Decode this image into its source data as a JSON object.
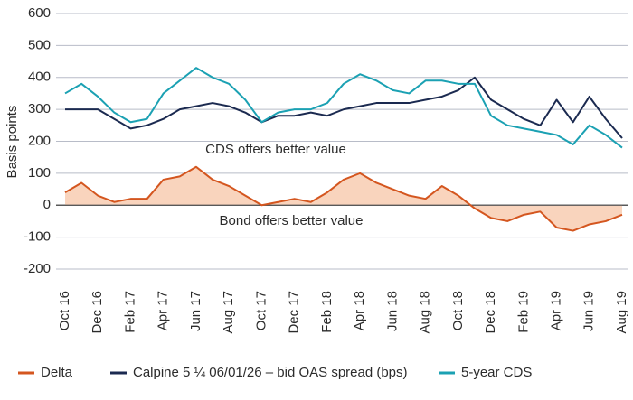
{
  "chart_data": {
    "type": "line",
    "y_label": "Basis points",
    "annotations": [
      "CDS offers better value",
      "Bond offers better value"
    ],
    "categories": [
      "Oct 16",
      null,
      "Dec 16",
      null,
      "Feb 17",
      null,
      "Apr 17",
      null,
      "Jun 17",
      null,
      "Aug 17",
      null,
      "Oct 17",
      null,
      "Dec 17",
      null,
      "Feb 18",
      null,
      "Apr 18",
      null,
      "Jun 18",
      null,
      "Aug 18",
      null,
      "Oct 18",
      null,
      "Dec 18",
      null,
      "Feb 19",
      null,
      "Apr 19",
      null,
      "Jun 19",
      null,
      "Aug 19"
    ],
    "series": [
      {
        "name": "Delta",
        "color": "#d4561f",
        "fill": "#f9d4bd",
        "values": [
          40,
          70,
          30,
          10,
          20,
          20,
          80,
          90,
          120,
          80,
          60,
          30,
          0,
          10,
          20,
          10,
          40,
          80,
          100,
          70,
          50,
          30,
          20,
          60,
          30,
          -10,
          -40,
          -50,
          -30,
          -20,
          -70,
          -80,
          -60,
          -50,
          -30
        ]
      },
      {
        "name": "Calpine 5 ¼ 06/01/26 – bid OAS spread (bps)",
        "color": "#1b2a50",
        "values": [
          300,
          300,
          300,
          270,
          240,
          250,
          270,
          300,
          310,
          320,
          310,
          290,
          260,
          280,
          280,
          290,
          280,
          300,
          310,
          320,
          320,
          320,
          330,
          340,
          360,
          400,
          330,
          300,
          270,
          250,
          330,
          260,
          340,
          270,
          210
        ]
      },
      {
        "name": "5-year CDS",
        "color": "#1ba1b3",
        "values": [
          350,
          380,
          340,
          290,
          260,
          270,
          350,
          390,
          430,
          400,
          380,
          330,
          260,
          290,
          300,
          300,
          320,
          380,
          410,
          390,
          360,
          350,
          390,
          390,
          380,
          380,
          280,
          250,
          240,
          230,
          220,
          190,
          250,
          220,
          180
        ]
      }
    ],
    "ylim": [
      -200,
      600
    ],
    "yticks": [
      -200,
      -100,
      0,
      100,
      200,
      300,
      400,
      500,
      600
    ],
    "grid": true,
    "area_series": 0,
    "legend": "bottom"
  }
}
